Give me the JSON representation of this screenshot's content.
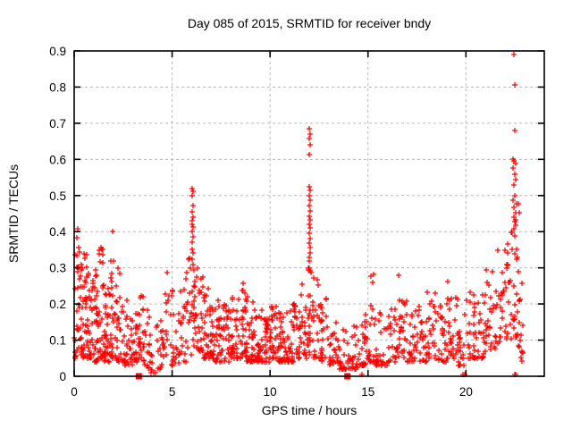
{
  "figure": {
    "title": "Day 085 of 2015, SRMTID for receiver bndy",
    "xlabel": "GPS time / hours",
    "ylabel": "SRMTID / TECUs"
  },
  "colors": {
    "marker": "#ff0000",
    "grid": "#b9b9b9",
    "frame": "#000000",
    "background": "#ffffff",
    "text": "#000000"
  },
  "chart_data": {
    "type": "scatter",
    "title": "Day 085 of 2015, SRMTID for receiver bndy",
    "xlabel": "GPS time / hours",
    "ylabel": "SRMTID / TECUs",
    "xlim": [
      0,
      24
    ],
    "ylim": [
      0,
      0.9
    ],
    "xticks": [
      0,
      5,
      10,
      15,
      20
    ],
    "yticks": [
      0,
      0.1,
      0.2,
      0.3,
      0.4,
      0.5,
      0.6,
      0.7,
      0.8,
      0.9
    ],
    "grid": "dashed-major",
    "legend": "none",
    "marker": "plus",
    "marker_color": "#ff0000",
    "seed": 85,
    "notable_points": {
      "spike_06h": [
        [
          6.02,
          0.52
        ],
        [
          6.06,
          0.512
        ],
        [
          6.03,
          0.5
        ],
        [
          6.05,
          0.472
        ],
        [
          6.02,
          0.455
        ],
        [
          6.06,
          0.44
        ],
        [
          6.04,
          0.43
        ],
        [
          6.02,
          0.42
        ],
        [
          6.05,
          0.412
        ],
        [
          6.03,
          0.4
        ],
        [
          6.06,
          0.385
        ],
        [
          6.04,
          0.37
        ],
        [
          6.02,
          0.352
        ],
        [
          6.05,
          0.34
        ],
        [
          6.03,
          0.325
        ],
        [
          6.06,
          0.31
        ],
        [
          5.95,
          0.3
        ],
        [
          6.1,
          0.295
        ]
      ],
      "spike_12h": [
        [
          12.0,
          0.685
        ],
        [
          12.03,
          0.67
        ],
        [
          12.0,
          0.658
        ],
        [
          12.04,
          0.64
        ],
        [
          12.01,
          0.613
        ],
        [
          12.0,
          0.525
        ],
        [
          12.04,
          0.515
        ],
        [
          12.01,
          0.5
        ],
        [
          12.05,
          0.488
        ],
        [
          12.0,
          0.472
        ],
        [
          12.03,
          0.458
        ],
        [
          12.01,
          0.443
        ],
        [
          12.05,
          0.432
        ],
        [
          12.0,
          0.42
        ],
        [
          12.03,
          0.41
        ],
        [
          12.01,
          0.395
        ],
        [
          12.04,
          0.38
        ],
        [
          12.0,
          0.368
        ],
        [
          12.03,
          0.355
        ],
        [
          12.05,
          0.342
        ],
        [
          12.0,
          0.33
        ],
        [
          12.02,
          0.318
        ],
        [
          11.96,
          0.3
        ],
        [
          12.06,
          0.292
        ]
      ],
      "spike_22h": [
        [
          22.45,
          0.89
        ],
        [
          22.5,
          0.805
        ],
        [
          22.49,
          0.68
        ],
        [
          22.4,
          0.602
        ],
        [
          22.46,
          0.595
        ],
        [
          22.52,
          0.588
        ],
        [
          22.42,
          0.575
        ],
        [
          22.48,
          0.558
        ],
        [
          22.53,
          0.545
        ],
        [
          22.44,
          0.53
        ],
        [
          22.5,
          0.5
        ],
        [
          22.4,
          0.487
        ],
        [
          22.46,
          0.468
        ],
        [
          22.52,
          0.452
        ],
        [
          22.43,
          0.44
        ],
        [
          22.48,
          0.428
        ],
        [
          22.55,
          0.418
        ],
        [
          22.6,
          0.35
        ],
        [
          22.62,
          0.33
        ]
      ],
      "zero_line_plus": [
        [
          14.7,
          0.004
        ],
        [
          19.85,
          0.004
        ],
        [
          19.92,
          0.004
        ],
        [
          22.48,
          0.004
        ],
        [
          22.54,
          0.004
        ]
      ]
    },
    "axis_squares": [
      [
        3.3,
        0.0
      ],
      [
        13.95,
        0.0
      ]
    ],
    "density_bins": {
      "description": "Dense scatter cloud summarized as bins; each bin is [x_start_hours, x_end_hours, point_count, y_min_TECU, y_max_TECU, low_bias_exponent]; points concentrate toward y_min.",
      "format": [
        "x_start",
        "x_end",
        "count",
        "y_min",
        "y_max",
        "low_bias_exponent"
      ],
      "bins": [
        [
          0.0,
          0.3,
          30,
          0.05,
          0.41,
          1.6
        ],
        [
          0.3,
          0.6,
          34,
          0.05,
          0.38,
          1.8
        ],
        [
          0.6,
          0.9,
          34,
          0.05,
          0.35,
          1.8
        ],
        [
          0.9,
          1.2,
          30,
          0.04,
          0.31,
          1.8
        ],
        [
          1.2,
          1.5,
          30,
          0.05,
          0.37,
          1.8
        ],
        [
          1.5,
          1.8,
          28,
          0.04,
          0.31,
          1.9
        ],
        [
          1.8,
          2.1,
          28,
          0.05,
          0.43,
          1.8
        ],
        [
          2.1,
          2.4,
          24,
          0.04,
          0.3,
          2.0
        ],
        [
          2.4,
          2.7,
          20,
          0.03,
          0.24,
          2.0
        ],
        [
          2.7,
          3.0,
          18,
          0.03,
          0.2,
          2.0
        ],
        [
          3.0,
          3.3,
          20,
          0.04,
          0.22,
          1.8
        ],
        [
          3.3,
          3.6,
          20,
          0.04,
          0.25,
          1.8
        ],
        [
          3.6,
          3.9,
          14,
          0.02,
          0.2,
          2.0
        ],
        [
          3.9,
          4.2,
          10,
          0.01,
          0.15,
          2.0
        ],
        [
          4.2,
          4.5,
          12,
          0.02,
          0.18,
          2.0
        ],
        [
          4.5,
          4.8,
          16,
          0.04,
          0.3,
          1.8
        ],
        [
          4.8,
          5.1,
          14,
          0.03,
          0.25,
          2.0
        ],
        [
          5.1,
          5.4,
          12,
          0.03,
          0.2,
          2.0
        ],
        [
          5.4,
          5.7,
          14,
          0.04,
          0.24,
          2.0
        ],
        [
          5.7,
          6.0,
          16,
          0.06,
          0.33,
          1.7
        ],
        [
          6.0,
          6.3,
          20,
          0.08,
          0.31,
          1.6
        ],
        [
          6.3,
          6.6,
          22,
          0.07,
          0.29,
          1.8
        ],
        [
          6.6,
          6.9,
          22,
          0.05,
          0.26,
          1.9
        ],
        [
          6.9,
          7.2,
          24,
          0.05,
          0.22,
          2.0
        ],
        [
          7.2,
          7.6,
          30,
          0.04,
          0.21,
          2.0
        ],
        [
          7.6,
          8.0,
          30,
          0.04,
          0.2,
          2.0
        ],
        [
          8.0,
          8.4,
          32,
          0.05,
          0.22,
          2.0
        ],
        [
          8.4,
          8.8,
          32,
          0.05,
          0.27,
          2.0
        ],
        [
          8.8,
          9.2,
          32,
          0.04,
          0.24,
          2.0
        ],
        [
          9.2,
          9.6,
          30,
          0.04,
          0.19,
          2.0
        ],
        [
          9.6,
          10.0,
          30,
          0.04,
          0.18,
          2.0
        ],
        [
          10.0,
          10.4,
          32,
          0.05,
          0.2,
          2.0
        ],
        [
          10.4,
          10.8,
          30,
          0.04,
          0.18,
          2.0
        ],
        [
          10.8,
          11.2,
          30,
          0.04,
          0.2,
          2.0
        ],
        [
          11.2,
          11.6,
          26,
          0.05,
          0.22,
          2.0
        ],
        [
          11.6,
          11.9,
          18,
          0.05,
          0.26,
          1.9
        ],
        [
          11.9,
          12.2,
          24,
          0.06,
          0.32,
          1.5
        ],
        [
          12.2,
          12.6,
          22,
          0.05,
          0.28,
          1.9
        ],
        [
          12.6,
          13.0,
          20,
          0.04,
          0.22,
          2.0
        ],
        [
          13.0,
          13.5,
          26,
          0.03,
          0.17,
          2.0
        ],
        [
          13.5,
          14.0,
          22,
          0.02,
          0.15,
          2.0
        ],
        [
          14.0,
          14.5,
          22,
          0.02,
          0.15,
          2.0
        ],
        [
          14.5,
          15.0,
          28,
          0.03,
          0.18,
          2.0
        ],
        [
          15.0,
          15.35,
          18,
          0.04,
          0.3,
          1.8
        ],
        [
          15.35,
          16.0,
          30,
          0.03,
          0.18,
          2.0
        ],
        [
          16.0,
          16.5,
          28,
          0.04,
          0.19,
          2.0
        ],
        [
          16.5,
          17.0,
          26,
          0.05,
          0.28,
          1.9
        ],
        [
          17.0,
          17.5,
          26,
          0.04,
          0.2,
          2.0
        ],
        [
          17.5,
          18.0,
          26,
          0.04,
          0.22,
          2.0
        ],
        [
          18.0,
          18.5,
          26,
          0.05,
          0.26,
          1.9
        ],
        [
          18.5,
          19.0,
          24,
          0.04,
          0.2,
          2.0
        ],
        [
          19.0,
          19.5,
          26,
          0.05,
          0.27,
          1.9
        ],
        [
          19.5,
          20.0,
          24,
          0.03,
          0.22,
          2.0
        ],
        [
          20.0,
          20.5,
          26,
          0.05,
          0.27,
          1.9
        ],
        [
          20.5,
          21.0,
          22,
          0.05,
          0.25,
          1.8
        ],
        [
          21.0,
          21.5,
          22,
          0.07,
          0.3,
          1.7
        ],
        [
          21.5,
          22.0,
          22,
          0.09,
          0.35,
          1.6
        ],
        [
          22.0,
          22.4,
          24,
          0.1,
          0.42,
          1.5
        ],
        [
          22.4,
          22.8,
          30,
          0.08,
          0.48,
          1.4
        ],
        [
          22.8,
          22.95,
          8,
          0.04,
          0.28,
          1.8
        ]
      ]
    }
  }
}
